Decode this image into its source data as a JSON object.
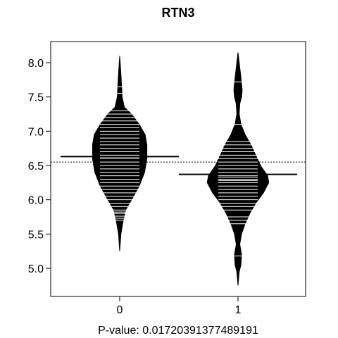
{
  "chart_data": {
    "type": "beanplot",
    "title": "RTN3",
    "xlabel": "P-value: 0.0172039137748919​1",
    "ylabel": "",
    "categories": [
      "0",
      "1"
    ],
    "ylim": [
      4.6,
      8.35
    ],
    "yticks": [
      "5.0",
      "5.5",
      "6.0",
      "6.5",
      "7.0",
      "7.5",
      "8.0"
    ],
    "overall_mean": 6.55,
    "series": [
      {
        "category": "0",
        "mean": 6.63,
        "density_y": [
          5.25,
          5.5,
          5.7,
          5.85,
          6.0,
          6.2,
          6.4,
          6.6,
          6.8,
          6.95,
          7.1,
          7.25,
          7.35,
          7.5,
          7.7,
          7.9,
          8.1
        ],
        "density_width": [
          0.0,
          0.02,
          0.06,
          0.1,
          0.2,
          0.33,
          0.42,
          0.46,
          0.46,
          0.43,
          0.33,
          0.2,
          0.08,
          0.04,
          0.03,
          0.015,
          0.0
        ],
        "observations": [
          5.7,
          5.73,
          5.76,
          5.8,
          5.82,
          5.85,
          5.9,
          5.95,
          6.0,
          6.05,
          6.1,
          6.15,
          6.2,
          6.25,
          6.3,
          6.35,
          6.4,
          6.45,
          6.5,
          6.55,
          6.6,
          6.62,
          6.65,
          6.7,
          6.75,
          6.8,
          6.85,
          6.9,
          6.95,
          7.0,
          7.05,
          7.1,
          7.15,
          7.2,
          7.25,
          7.3,
          7.55,
          7.65
        ]
      },
      {
        "category": "1",
        "mean": 6.37,
        "density_y": [
          4.75,
          4.95,
          5.05,
          5.2,
          5.35,
          5.5,
          5.65,
          5.8,
          5.95,
          6.1,
          6.25,
          6.35,
          6.5,
          6.65,
          6.8,
          6.95,
          7.1,
          7.25,
          7.4,
          7.5,
          7.6,
          7.7,
          7.85,
          8.0,
          8.15
        ],
        "density_width": [
          0.0,
          0.02,
          0.05,
          0.06,
          0.03,
          0.06,
          0.12,
          0.2,
          0.3,
          0.43,
          0.52,
          0.5,
          0.38,
          0.3,
          0.22,
          0.12,
          0.05,
          0.02,
          0.03,
          0.06,
          0.07,
          0.06,
          0.04,
          0.02,
          0.0
        ],
        "observations": [
          5.18,
          5.65,
          5.7,
          5.75,
          5.85,
          5.9,
          5.95,
          6.0,
          6.05,
          6.1,
          6.15,
          6.2,
          6.25,
          6.28,
          6.3,
          6.33,
          6.35,
          6.4,
          6.45,
          6.5,
          6.55,
          6.6,
          6.65,
          6.7,
          6.75,
          6.8,
          6.85,
          7.1,
          7.72
        ]
      }
    ]
  }
}
